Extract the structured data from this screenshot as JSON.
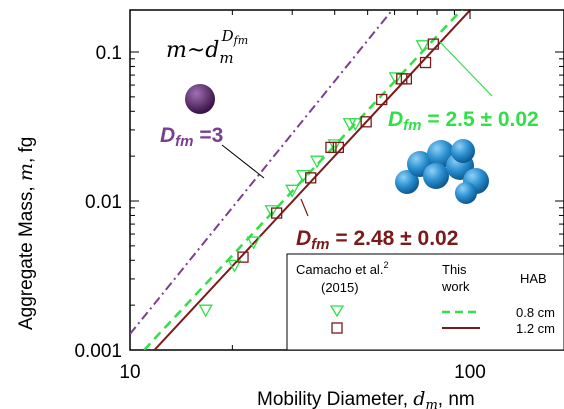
{
  "chart_data": {
    "type": "scatter",
    "xlabel": "Mobility Diameter, d_m, nm",
    "ylabel": "Aggregate Mass, m, fg",
    "xscale": "log",
    "yscale": "log",
    "xlim": [
      10,
      200
    ],
    "ylim": [
      0.001,
      0.2
    ],
    "x_ticks": [
      "10",
      "100"
    ],
    "y_ticks": [
      "0.001",
      "0.01",
      "0.1"
    ],
    "grid": false,
    "colors": {
      "purple": "#7b3f8f",
      "green": "#2fe048",
      "maroon": "#7a1a1a",
      "sphere": "#5b2d6a",
      "aggregate": "#2a8fd0"
    },
    "equation": {
      "base": "m~d",
      "sub": "m",
      "sup": "D",
      "supsub": "fm"
    },
    "annotations": {
      "purple": {
        "label": "D",
        "sub": "fm",
        "text": " =3"
      },
      "green": {
        "label": "D",
        "sub": "fm",
        "text": " = 2.5 ± 0.02"
      },
      "maroon": {
        "label": "D",
        "sub": "fm",
        "text": " = 2.48 ± 0.02"
      }
    },
    "series": [
      {
        "name": "Camacho et al. (2015)",
        "marker": "triangle-down",
        "color": "#2fe048",
        "x": [
          16.7,
          20.3,
          23.1,
          26.1,
          30.0,
          32.3,
          35.5,
          40.0,
          44.3,
          46.0,
          60.5,
          72.6
        ],
        "y": [
          0.00185,
          0.0037,
          0.0053,
          0.0086,
          0.0118,
          0.0148,
          0.0185,
          0.0238,
          0.033,
          0.033,
          0.067,
          0.11
        ]
      },
      {
        "name": "This work",
        "marker": "square",
        "color": "#7a1a1a",
        "x": [
          21.5,
          27.0,
          34.0,
          39.0,
          41.0,
          49.5,
          55.0,
          63.0,
          65.0,
          74.0,
          78.0
        ],
        "y": [
          0.0042,
          0.0083,
          0.0143,
          0.0229,
          0.0229,
          0.034,
          0.048,
          0.066,
          0.066,
          0.085,
          0.113
        ]
      }
    ],
    "fits": [
      {
        "name": "D_fm = 3",
        "style": "dash-dot",
        "color": "#7b3f8f",
        "x": [
          10,
          60
        ],
        "y": [
          0.00128,
          0.2
        ]
      },
      {
        "name": "0.8 cm",
        "style": "dashed",
        "color": "#2fe048",
        "x": [
          11.0,
          96.0
        ],
        "y": [
          0.001,
          0.2
        ]
      },
      {
        "name": "1.2 cm",
        "style": "solid",
        "color": "#7a1a1a",
        "x": [
          11.8,
          102.0
        ],
        "y": [
          0.001,
          0.2
        ]
      }
    ],
    "legend": {
      "placement": "bottom-right",
      "col1_title": "Camacho et al.",
      "col1_sup": "2",
      "col1_year": "(2015)",
      "col2_title_1": "This",
      "col2_title_2": "work",
      "col3_title": "HAB",
      "row1_label": "0.8 cm",
      "row2_label": "1.2 cm"
    }
  }
}
